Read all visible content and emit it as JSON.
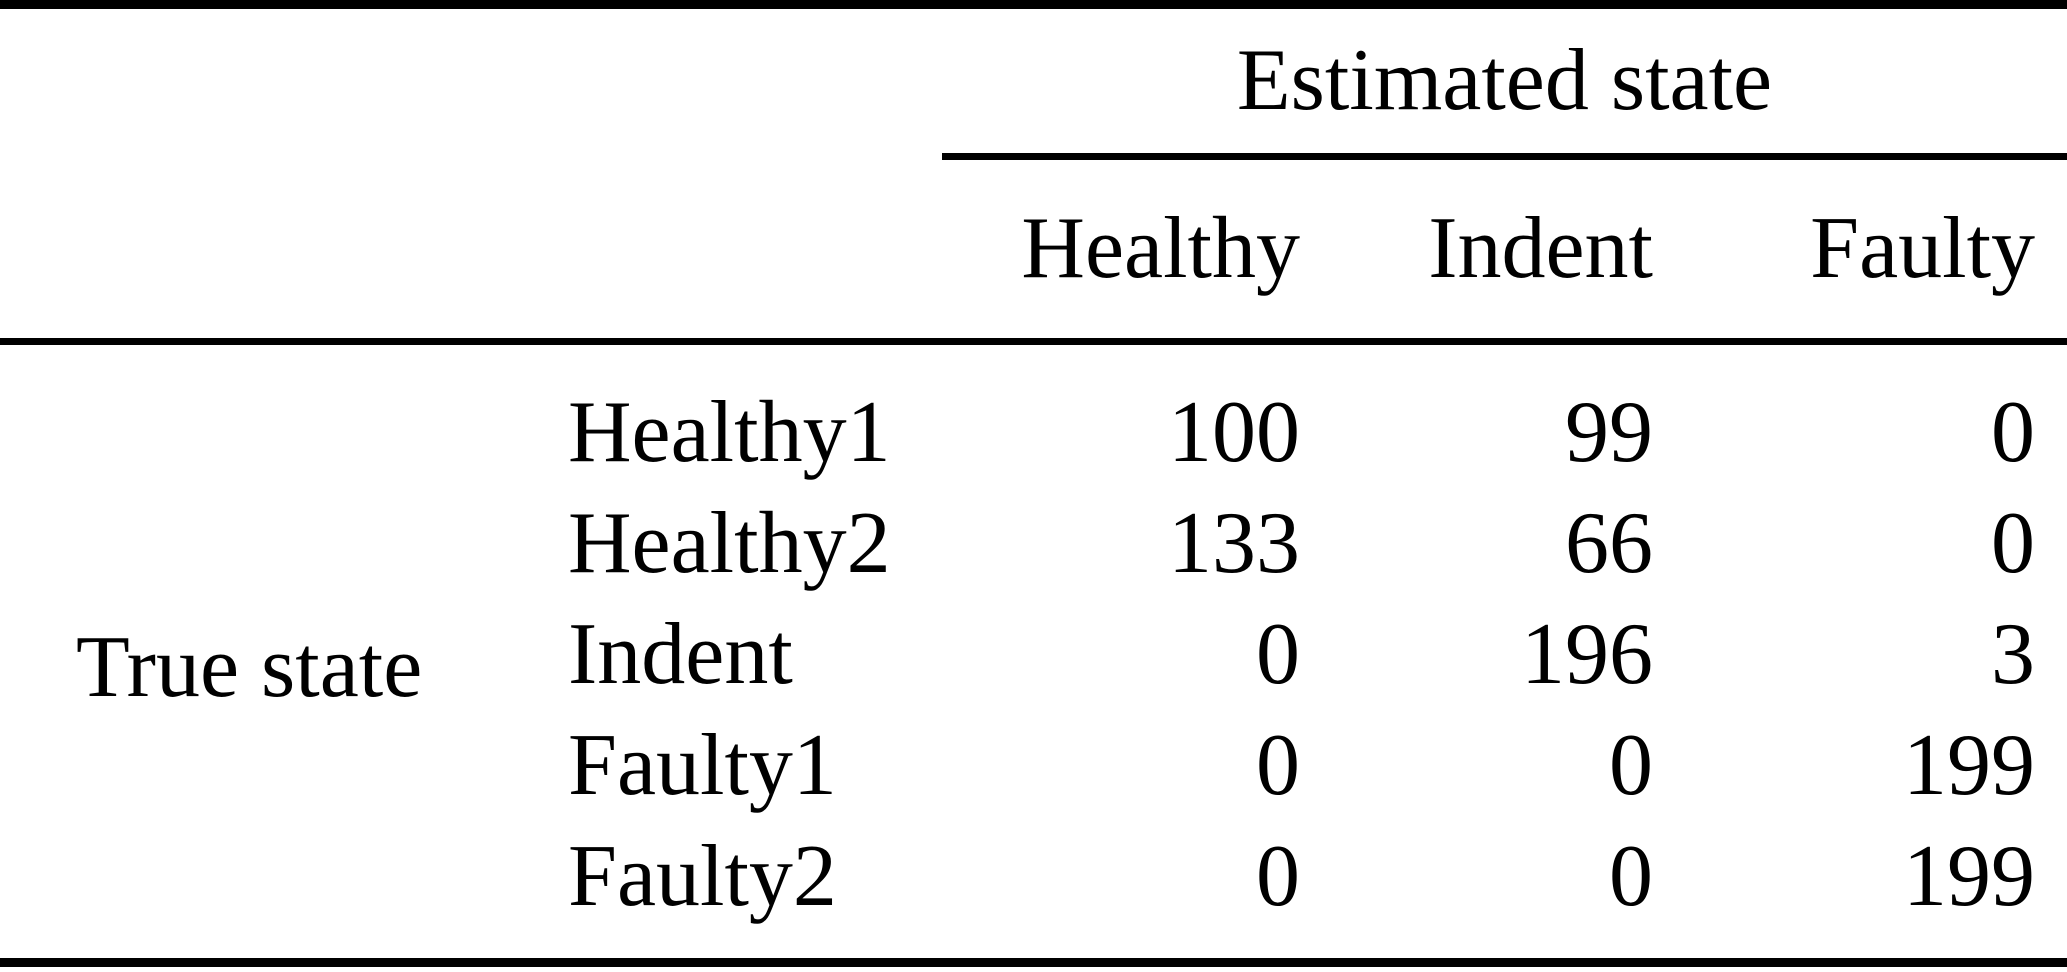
{
  "table": {
    "col_group_header": "Estimated state",
    "row_group_header": "True state",
    "columns": [
      "Healthy",
      "Indent",
      "Faulty"
    ],
    "rows": [
      {
        "label": "Healthy1",
        "values": [
          "100",
          "99",
          "0"
        ]
      },
      {
        "label": "Healthy2",
        "values": [
          "133",
          "66",
          "0"
        ]
      },
      {
        "label": "Indent",
        "values": [
          "0",
          "196",
          "3"
        ]
      },
      {
        "label": "Faulty1",
        "values": [
          "0",
          "0",
          "199"
        ]
      },
      {
        "label": "Faulty2",
        "values": [
          "0",
          "0",
          "199"
        ]
      }
    ]
  },
  "colors": {
    "background": "#ffffff",
    "text": "#000000",
    "rule": "#000000"
  },
  "chart_data": {
    "type": "table",
    "title": "",
    "column_group": "Estimated state",
    "row_group": "True state",
    "columns": [
      "Healthy",
      "Indent",
      "Faulty"
    ],
    "row_labels": [
      "Healthy1",
      "Healthy2",
      "Indent",
      "Faulty1",
      "Faulty2"
    ],
    "values": [
      [
        100,
        99,
        0
      ],
      [
        133,
        66,
        0
      ],
      [
        0,
        196,
        3
      ],
      [
        0,
        0,
        199
      ],
      [
        0,
        0,
        199
      ]
    ]
  }
}
